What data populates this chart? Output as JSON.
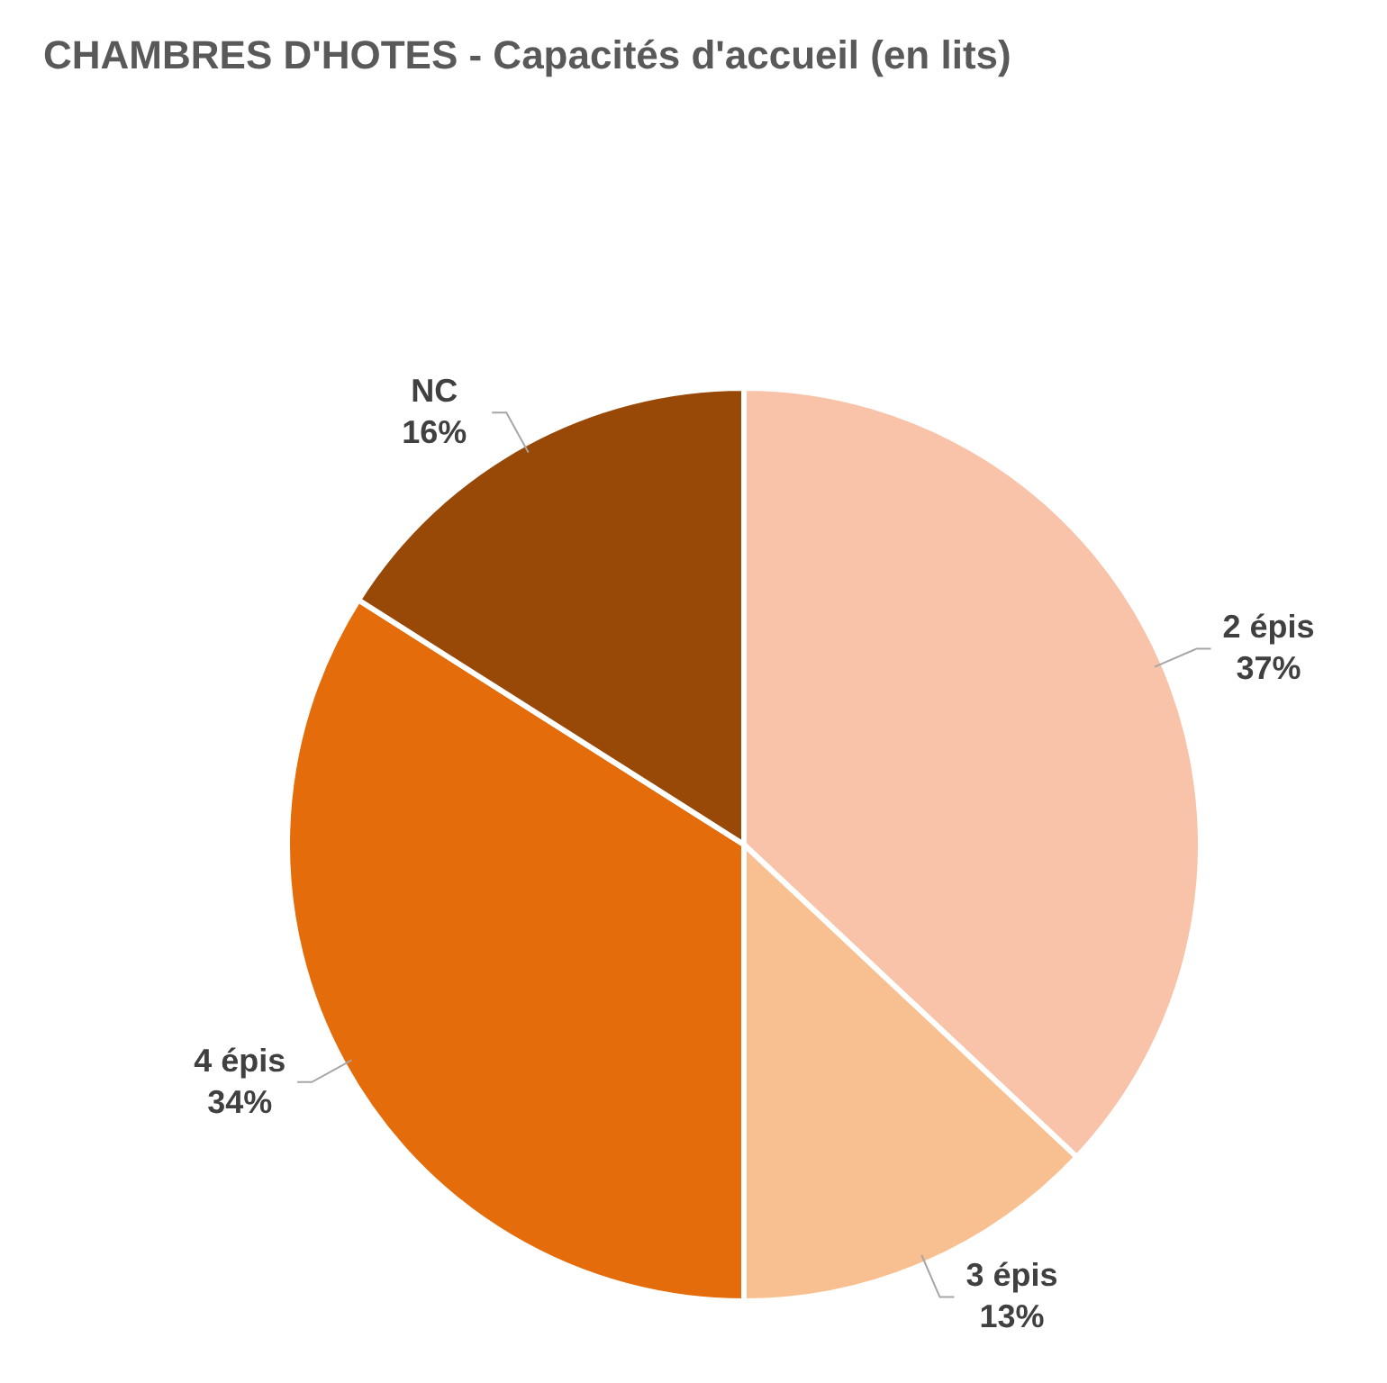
{
  "chart_data": {
    "type": "pie",
    "title": "CHAMBRES D'HOTES - Capacités d'accueil (en lits)",
    "categories": [
      "2 épis",
      "3 épis",
      "4 épis",
      "NC"
    ],
    "values": [
      37,
      13,
      34,
      16
    ],
    "value_labels": [
      "37%",
      "13%",
      "34%",
      "16%"
    ],
    "colors": [
      "#f8c3a8",
      "#f8c090",
      "#e46c0a",
      "#984807"
    ],
    "legend": false
  }
}
